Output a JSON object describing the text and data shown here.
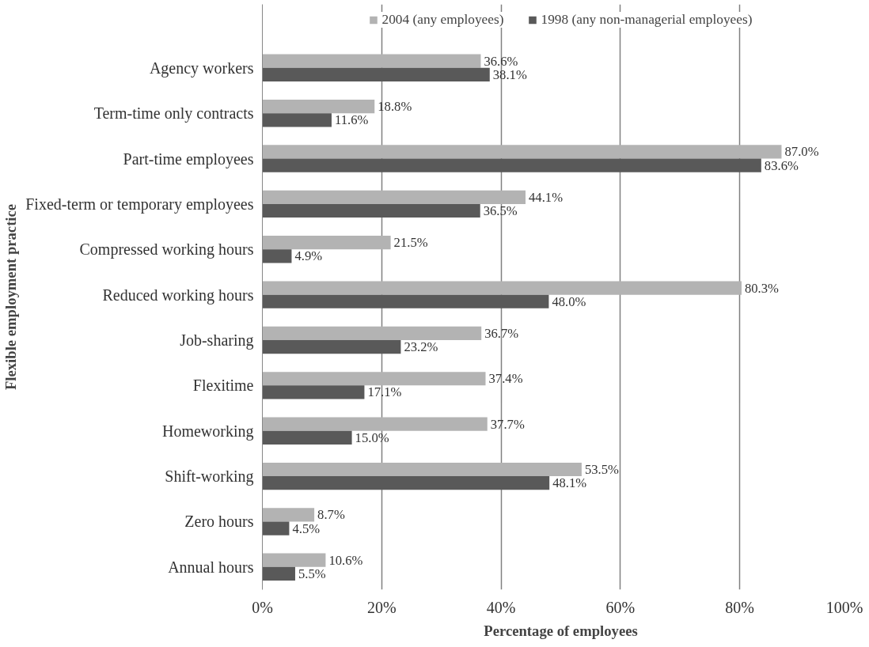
{
  "chart_data": {
    "type": "bar",
    "orientation": "horizontal",
    "xlabel": "Percentage of employees",
    "ylabel": "Flexible employment practice",
    "categories": [
      "Agency workers",
      "Term-time only contracts",
      "Part-time employees",
      "Fixed-term or temporary employees",
      "Compressed working hours",
      "Reduced working hours",
      "Job-sharing",
      "Flexitime",
      "Homeworking",
      "Shift-working",
      "Zero hours",
      "Annual hours"
    ],
    "series": [
      {
        "name": "2004 (any employees)",
        "color": "#b3b3b3",
        "values": [
          36.6,
          18.8,
          87.0,
          44.1,
          21.5,
          80.3,
          36.7,
          37.4,
          37.7,
          53.5,
          8.7,
          10.6
        ],
        "value_labels": [
          "36.6%",
          "18.8%",
          "87.0%",
          "44.1%",
          "21.5%",
          "80.3%",
          "36.7%",
          "37.4%",
          "37.7%",
          "53.5%",
          "8.7%",
          "10.6%"
        ]
      },
      {
        "name": "1998 (any non-managerial employees)",
        "color": "#595959",
        "values": [
          38.1,
          11.6,
          83.6,
          36.5,
          4.9,
          48.0,
          23.2,
          17.1,
          15.0,
          48.1,
          4.5,
          5.5
        ],
        "value_labels": [
          "38.1%",
          "11.6%",
          "83.6%",
          "36.5%",
          "4.9%",
          "48.0%",
          "23.2%",
          "17.1%",
          "15.0%",
          "48.1%",
          "4.5%",
          "5.5%"
        ]
      }
    ],
    "xlim": [
      0,
      100
    ],
    "xticks": [
      {
        "value": 0,
        "label": "0%"
      },
      {
        "value": 20,
        "label": "20%"
      },
      {
        "value": 40,
        "label": "40%"
      },
      {
        "value": 60,
        "label": "60%"
      },
      {
        "value": 80,
        "label": "80%"
      },
      {
        "value": 100,
        "label": "100%"
      }
    ],
    "grid": "x",
    "legend": "top"
  }
}
